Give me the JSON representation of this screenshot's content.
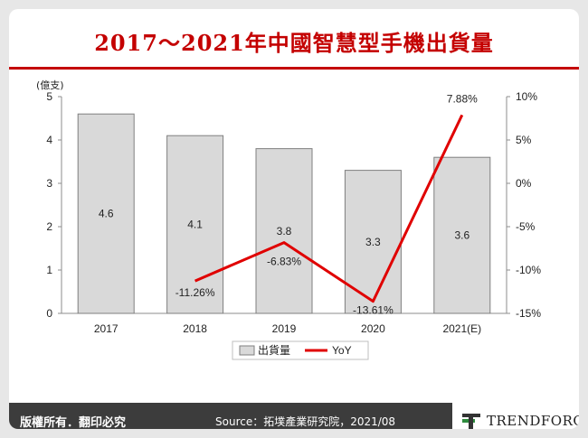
{
  "title": "2017～2021年中國智慧型手機出貨量",
  "footer": {
    "rights": "版權所有．翻印必究",
    "source": "Source：拓墣產業研究院，2021/08",
    "brand": "TRENDFORCE"
  },
  "colors": {
    "title": "#c40000",
    "bar_fill": "#d9d9d9",
    "bar_stroke": "#7f7f7f",
    "line": "#e00000"
  },
  "chart_data": {
    "type": "bar",
    "unit_label": "(億支)",
    "categories": [
      "2017",
      "2018",
      "2019",
      "2020",
      "2021(E)"
    ],
    "series": [
      {
        "name": "出貨量",
        "type": "bar",
        "axis": "left",
        "values": [
          4.6,
          4.1,
          3.8,
          3.3,
          3.6
        ],
        "labels": [
          "4.6",
          "4.1",
          "3.8",
          "3.3",
          "3.6"
        ]
      },
      {
        "name": "YoY",
        "type": "line",
        "axis": "right",
        "values": [
          null,
          -11.26,
          -6.83,
          -13.61,
          7.88
        ],
        "labels": [
          "",
          "-11.26%",
          "-6.83%",
          "-13.61%",
          "7.88%"
        ]
      }
    ],
    "y_left": {
      "min": 0,
      "max": 5,
      "ticks": [
        "0",
        "1",
        "2",
        "3",
        "4",
        "5"
      ]
    },
    "y_right": {
      "min": -15,
      "max": 10,
      "ticks": [
        "-15%",
        "-10%",
        "-5%",
        "0%",
        "5%",
        "10%"
      ]
    },
    "legend_position": "bottom",
    "grid": false
  }
}
